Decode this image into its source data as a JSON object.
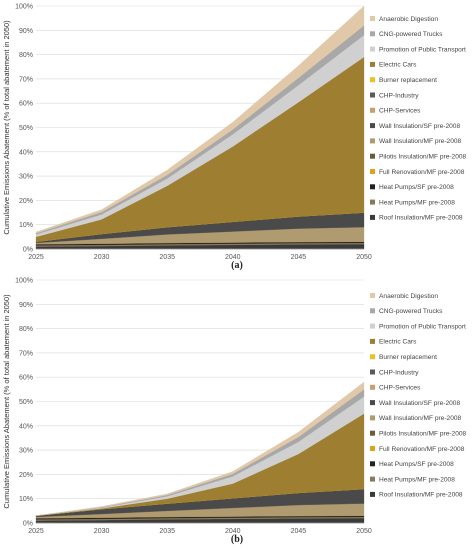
{
  "chart_data": [
    {
      "type": "area",
      "stacked": true,
      "caption": "(a)",
      "ylabel": "Cumulative Emissions Abatement (% of total abatement in 2050)",
      "ylim": [
        0,
        100
      ],
      "yticks": [
        "0%",
        "10%",
        "20%",
        "30%",
        "40%",
        "50%",
        "60%",
        "70%",
        "80%",
        "90%",
        "100%"
      ],
      "x": [
        "2025",
        "2030",
        "2035",
        "2040",
        "2045",
        "2050"
      ],
      "grid": true,
      "legend_placement": "right",
      "series": [
        {
          "name": "Roof Insulation/MF pre-2008",
          "color": "#3a3a3a",
          "values": [
            1,
            1.2,
            1.5,
            1.7,
            1.9,
            2
          ]
        },
        {
          "name": "Heat Pumps/MF pre-2008",
          "color": "#8a7a58",
          "values": [
            0.5,
            0.5,
            0.5,
            0.5,
            0.5,
            0.5
          ]
        },
        {
          "name": "Heat Pumps/SF pre-2008",
          "color": "#222222",
          "values": [
            0.5,
            0.5,
            0.5,
            0.5,
            0.5,
            0.5
          ]
        },
        {
          "name": "Full Renovation/MF pre-2008",
          "color": "#e0a020",
          "values": [
            0,
            0,
            0,
            0,
            0,
            0
          ]
        },
        {
          "name": "Pilotis Insulation/MF pre-2008",
          "color": "#6b5b3a",
          "values": [
            0,
            0,
            0,
            0,
            0,
            0
          ]
        },
        {
          "name": "Wall Insulation/MF pre-2008",
          "color": "#b09a70",
          "values": [
            0.5,
            2,
            3.5,
            4.5,
            5.5,
            6
          ]
        },
        {
          "name": "Wall Insulation/SF pre-2008",
          "color": "#4a4a4a",
          "values": [
            0.5,
            2,
            3,
            4,
            5,
            6
          ]
        },
        {
          "name": "CHP-Services",
          "color": "#c8a070",
          "values": [
            0,
            0,
            0,
            0,
            0,
            0
          ]
        },
        {
          "name": "CHP-Industry",
          "color": "#5a5a5a",
          "values": [
            0,
            0,
            0,
            0,
            0,
            0
          ]
        },
        {
          "name": "Burner replacement",
          "color": "#f0c020",
          "values": [
            0,
            0,
            0,
            0,
            0,
            0
          ]
        },
        {
          "name": "Electric Cars",
          "color": "#9e7e30",
          "values": [
            2,
            6,
            17,
            31,
            47,
            64
          ]
        },
        {
          "name": "Promotion of Public Transport",
          "color": "#d0d0d0",
          "values": [
            1,
            2,
            3,
            5,
            7,
            9
          ]
        },
        {
          "name": "CNG-powered Trucks",
          "color": "#a8a8a8",
          "values": [
            0.5,
            1,
            1.5,
            2,
            3,
            4
          ]
        },
        {
          "name": "Anaerobic Digestion",
          "color": "#e0c8a8",
          "values": [
            0.5,
            1,
            2,
            3,
            5,
            8
          ]
        }
      ]
    },
    {
      "type": "area",
      "stacked": true,
      "caption": "(b)",
      "ylabel": "Cumulative Emissions Abatement (% of total abatement in 2050)",
      "ylim": [
        0,
        100
      ],
      "yticks": [
        "0%",
        "10%",
        "20%",
        "30%",
        "40%",
        "50%",
        "60%",
        "70%",
        "80%",
        "90%",
        "100%"
      ],
      "x": [
        "2025",
        "2030",
        "2035",
        "2040",
        "2045",
        "2050"
      ],
      "grid": true,
      "legend_placement": "right",
      "series": [
        {
          "name": "Roof Insulation/MF pre-2008",
          "color": "#3a3a3a",
          "values": [
            1,
            1.2,
            1.5,
            1.7,
            1.9,
            2
          ]
        },
        {
          "name": "Heat Pumps/MF pre-2008",
          "color": "#8a7a58",
          "values": [
            0.5,
            0.5,
            0.5,
            0.5,
            0.5,
            0.5
          ]
        },
        {
          "name": "Heat Pumps/SF pre-2008",
          "color": "#222222",
          "values": [
            0.5,
            0.5,
            0.5,
            0.5,
            0.5,
            0.5
          ]
        },
        {
          "name": "Full Renovation/MF pre-2008",
          "color": "#e0a020",
          "values": [
            0,
            0,
            0,
            0,
            0,
            0
          ]
        },
        {
          "name": "Pilotis Insulation/MF pre-2008",
          "color": "#6b5b3a",
          "values": [
            0,
            0,
            0,
            0,
            0,
            0
          ]
        },
        {
          "name": "Wall Insulation/MF pre-2008",
          "color": "#b09a70",
          "values": [
            0.5,
            1.5,
            2.5,
            3.5,
            4.5,
            5
          ]
        },
        {
          "name": "Wall Insulation/SF pre-2008",
          "color": "#4a4a4a",
          "values": [
            0.5,
            2,
            3,
            4,
            5,
            6
          ]
        },
        {
          "name": "CHP-Services",
          "color": "#c8a070",
          "values": [
            0,
            0,
            0,
            0,
            0,
            0
          ]
        },
        {
          "name": "CHP-Industry",
          "color": "#5a5a5a",
          "values": [
            0,
            0,
            0,
            0,
            0,
            0
          ]
        },
        {
          "name": "Burner replacement",
          "color": "#f0c020",
          "values": [
            0,
            0,
            0,
            0,
            0,
            0
          ]
        },
        {
          "name": "Electric Cars",
          "color": "#9e7e30",
          "values": [
            0,
            0.3,
            2,
            6,
            16,
            31
          ]
        },
        {
          "name": "Promotion of Public Transport",
          "color": "#d0d0d0",
          "values": [
            0,
            0.3,
            1,
            3,
            5,
            7
          ]
        },
        {
          "name": "CNG-powered Trucks",
          "color": "#a8a8a8",
          "values": [
            0,
            0.2,
            0.5,
            1,
            2,
            3
          ]
        },
        {
          "name": "Anaerobic Digestion",
          "color": "#e0c8a8",
          "values": [
            0,
            0.3,
            0.5,
            1,
            2,
            3
          ]
        }
      ]
    }
  ]
}
